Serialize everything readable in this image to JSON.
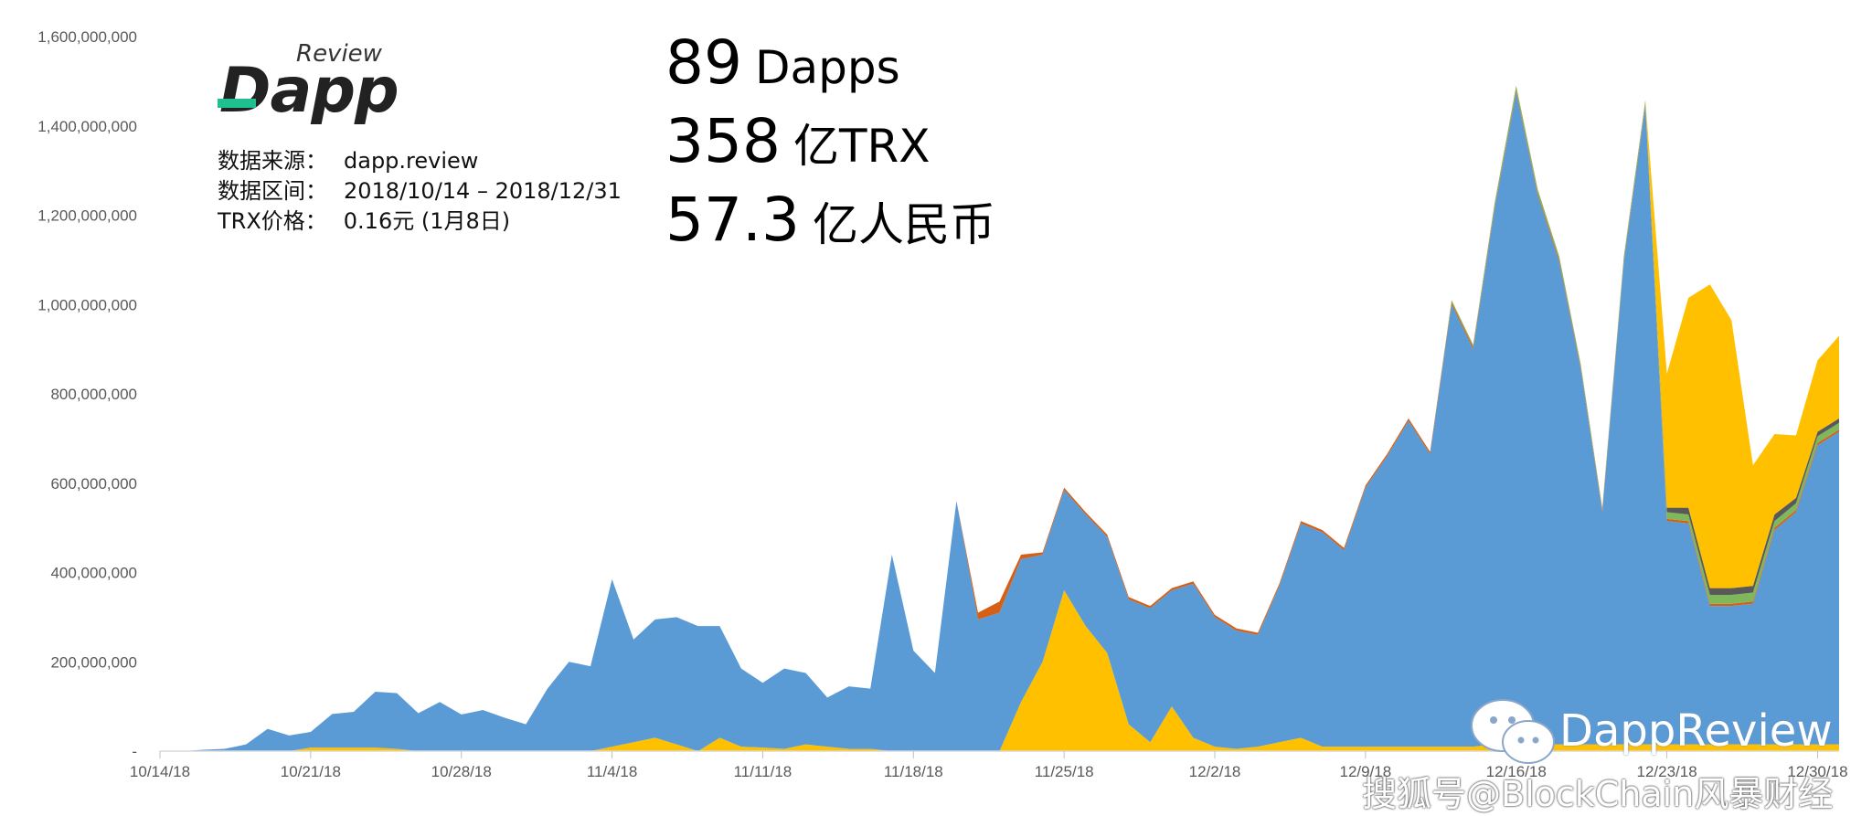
{
  "header": {
    "logo_text": "Dapp",
    "logo_sub": "Review",
    "source_rows": [
      {
        "label": "数据来源：",
        "value": "dapp.review"
      },
      {
        "label": "数据区间：",
        "value": "2018/10/14 – 2018/12/31"
      },
      {
        "label": "TRX价格：",
        "value": "0.16元 (1月8日)"
      }
    ],
    "stats": [
      {
        "number": "89",
        "unit": "Dapps"
      },
      {
        "number": "358",
        "unit": "亿TRX"
      },
      {
        "number": "57.3",
        "unit": "亿人民币"
      }
    ]
  },
  "watermark": {
    "brand": "DappReview",
    "site": "搜狐号@BlockChain风暴财经"
  },
  "colors": {
    "blue": "#5b9bd5",
    "yellow": "#ffc000",
    "orange": "#d65f16",
    "green": "#7fb85a",
    "darkgray": "#595959",
    "axis": "#d9d9d9",
    "logo_accent": "#1fbf8f"
  },
  "chart_data": {
    "type": "area",
    "stacked": true,
    "title": "",
    "xlabel": "",
    "ylabel": "",
    "ylim": [
      0,
      1600000000
    ],
    "yticks": [
      "-",
      "200,000,000",
      "400,000,000",
      "600,000,000",
      "800,000,000",
      "1,000,000,000",
      "1,200,000,000",
      "1,400,000,000",
      "1,600,000,000"
    ],
    "xtick_labels": [
      "10/14/18",
      "10/21/18",
      "10/28/18",
      "11/4/18",
      "11/11/18",
      "11/18/18",
      "11/25/18",
      "12/2/18",
      "12/9/18",
      "12/16/18",
      "12/23/18",
      "12/30/18"
    ],
    "x_start": "10/14/18",
    "x_end": "12/31/18",
    "grid": false,
    "legend": "none",
    "series": [
      {
        "color": "#ffc000",
        "values": [
          0,
          0,
          0,
          0,
          0,
          0,
          0,
          8000000,
          8000000,
          8000000,
          8000000,
          5000000,
          0,
          0,
          0,
          0,
          0,
          0,
          0,
          0,
          0,
          10000000,
          20000000,
          30000000,
          15000000,
          0,
          30000000,
          10000000,
          8000000,
          5000000,
          15000000,
          10000000,
          5000000,
          5000000,
          0,
          0,
          0,
          0,
          0,
          0,
          110000000,
          200000000,
          360000000,
          280000000,
          220000000,
          60000000,
          20000000,
          100000000,
          30000000,
          10000000,
          5000000,
          10000000,
          20000000,
          30000000,
          10000000,
          10000000,
          10000000,
          10000000,
          10000000,
          10000000,
          10000000,
          10000000,
          15000000,
          15000000,
          15000000,
          15000000,
          15000000,
          15000000,
          15000000,
          15000000,
          15000000,
          15000000,
          15000000,
          15000000,
          15000000,
          15000000,
          15000000,
          15000000,
          15000000
        ]
      },
      {
        "color": "#5b9bd5",
        "values": [
          0,
          0,
          3000000,
          5000000,
          15000000,
          50000000,
          35000000,
          35000000,
          75000000,
          80000000,
          125000000,
          125000000,
          85000000,
          110000000,
          82000000,
          92000000,
          75000000,
          60000000,
          140000000,
          200000000,
          190000000,
          375000000,
          230000000,
          265000000,
          285000000,
          280000000,
          250000000,
          175000000,
          145000000,
          180000000,
          160000000,
          110000000,
          140000000,
          135000000,
          440000000,
          225000000,
          175000000,
          560000000,
          295000000,
          310000000,
          320000000,
          240000000,
          225000000,
          250000000,
          260000000,
          280000000,
          300000000,
          260000000,
          345000000,
          290000000,
          265000000,
          250000000,
          350000000,
          480000000,
          480000000,
          440000000,
          580000000,
          650000000,
          730000000,
          655000000,
          990000000,
          890000000,
          1200000000,
          1460000000,
          1230000000,
          1080000000,
          840000000,
          520000000,
          1080000000,
          1430000000,
          500000000,
          495000000,
          310000000,
          310000000,
          315000000,
          480000000,
          520000000,
          670000000,
          700000000
        ]
      },
      {
        "color": "#d65f16",
        "values": [
          0,
          0,
          0,
          0,
          0,
          0,
          0,
          0,
          0,
          0,
          0,
          0,
          0,
          0,
          0,
          0,
          0,
          0,
          0,
          0,
          0,
          0,
          0,
          0,
          0,
          0,
          0,
          0,
          0,
          0,
          0,
          0,
          0,
          0,
          0,
          0,
          0,
          0,
          15000000,
          25000000,
          10000000,
          5000000,
          5000000,
          5000000,
          5000000,
          5000000,
          5000000,
          5000000,
          5000000,
          5000000,
          5000000,
          5000000,
          5000000,
          5000000,
          5000000,
          5000000,
          5000000,
          5000000,
          5000000,
          5000000,
          5000000,
          5000000,
          5000000,
          5000000,
          5000000,
          5000000,
          5000000,
          5000000,
          5000000,
          5000000,
          5000000,
          5000000,
          5000000,
          5000000,
          5000000,
          5000000,
          5000000,
          5000000,
          5000000
        ]
      },
      {
        "color": "#7fb85a",
        "values": [
          0,
          0,
          0,
          0,
          0,
          0,
          0,
          0,
          0,
          0,
          0,
          0,
          0,
          0,
          0,
          0,
          0,
          0,
          0,
          0,
          0,
          0,
          0,
          0,
          0,
          0,
          0,
          0,
          0,
          0,
          0,
          0,
          0,
          0,
          0,
          0,
          0,
          0,
          0,
          0,
          0,
          0,
          0,
          0,
          0,
          0,
          0,
          0,
          0,
          0,
          0,
          0,
          0,
          0,
          0,
          0,
          0,
          0,
          0,
          0,
          5000000,
          5000000,
          8000000,
          10000000,
          8000000,
          8000000,
          6000000,
          5000000,
          8000000,
          8000000,
          15000000,
          15000000,
          20000000,
          20000000,
          20000000,
          15000000,
          15000000,
          15000000,
          15000000
        ]
      },
      {
        "color": "#595959",
        "values": [
          0,
          0,
          0,
          0,
          0,
          0,
          0,
          0,
          0,
          0,
          0,
          0,
          0,
          0,
          0,
          0,
          0,
          0,
          0,
          0,
          0,
          0,
          0,
          0,
          0,
          0,
          0,
          0,
          0,
          0,
          0,
          0,
          0,
          0,
          0,
          0,
          0,
          0,
          0,
          0,
          0,
          0,
          0,
          0,
          0,
          0,
          0,
          0,
          0,
          0,
          0,
          0,
          0,
          0,
          0,
          0,
          0,
          0,
          0,
          0,
          0,
          0,
          0,
          0,
          0,
          0,
          0,
          0,
          0,
          0,
          10000000,
          15000000,
          15000000,
          15000000,
          15000000,
          15000000,
          12000000,
          10000000,
          10000000
        ]
      },
      {
        "color": "#ffc000",
        "values": [
          0,
          0,
          0,
          0,
          0,
          0,
          0,
          0,
          0,
          0,
          0,
          0,
          0,
          0,
          0,
          0,
          0,
          0,
          0,
          0,
          0,
          0,
          0,
          0,
          0,
          0,
          0,
          0,
          0,
          0,
          0,
          0,
          0,
          0,
          0,
          0,
          0,
          0,
          0,
          0,
          0,
          0,
          0,
          0,
          0,
          0,
          0,
          0,
          0,
          0,
          0,
          0,
          0,
          0,
          0,
          0,
          0,
          0,
          0,
          0,
          0,
          0,
          0,
          0,
          0,
          0,
          0,
          0,
          0,
          0,
          300000000,
          470000000,
          680000000,
          600000000,
          270000000,
          180000000,
          140000000,
          160000000,
          185000000
        ]
      }
    ]
  }
}
